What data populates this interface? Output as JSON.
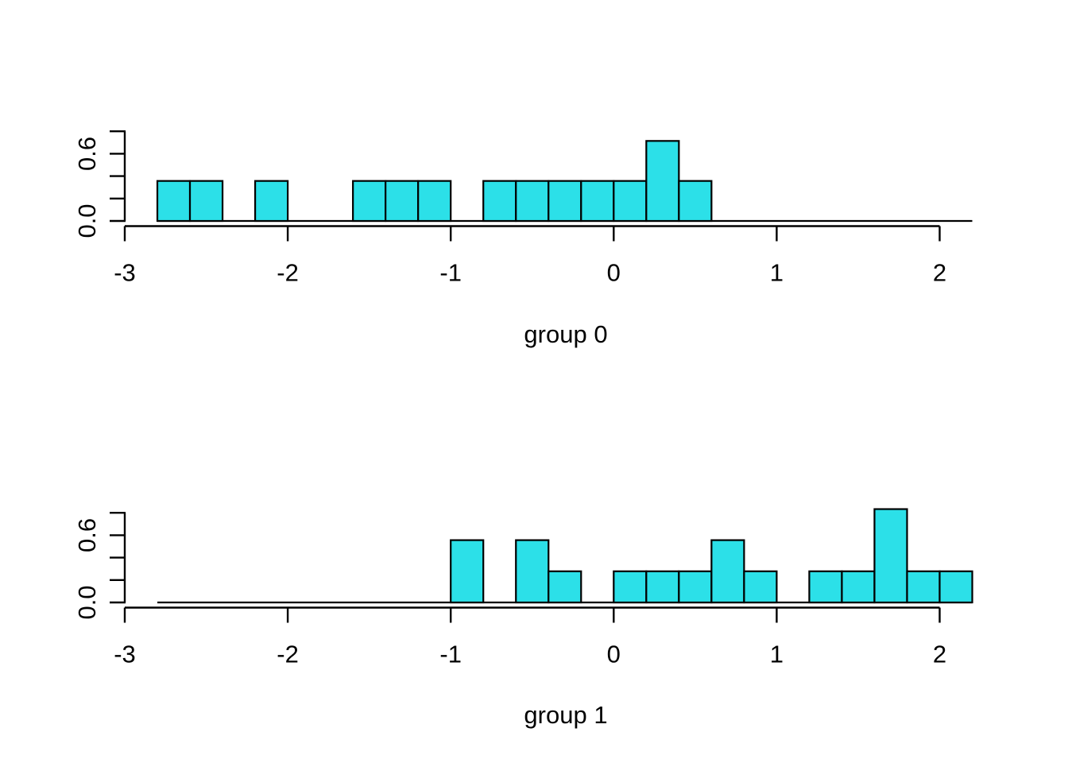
{
  "figure": {
    "background": "#ffffff",
    "text_color": "#000000",
    "bar_fill": "#2CE0E8",
    "bar_stroke": "#000000",
    "axis_color": "#000000"
  },
  "chart_data": [
    {
      "type": "bar",
      "kind": "density-histogram",
      "title": "",
      "xlabel": "group 0",
      "ylabel": "",
      "x_tick_values": [
        -3,
        -2,
        -1,
        0,
        1,
        2
      ],
      "x_tick_labels": [
        "-3",
        "-2",
        "-1",
        "0",
        "1",
        "2"
      ],
      "y_tick_values": [
        0,
        0.2,
        0.4,
        0.6,
        0.8
      ],
      "y_tick_labels": [
        "0.0",
        "",
        "",
        "0.6",
        ""
      ],
      "xlim": [
        -3,
        2.2
      ],
      "ylim": [
        0,
        0.8
      ],
      "grid": false,
      "legend": false,
      "bin_start": -2.8,
      "bin_width": 0.2,
      "n_obs": 14,
      "counts": [
        1,
        1,
        0,
        1,
        0,
        0,
        1,
        1,
        1,
        0,
        1,
        1,
        1,
        1,
        1,
        2,
        1,
        0,
        0,
        0,
        0,
        0,
        0,
        0,
        0
      ],
      "densities": [
        0.357,
        0.357,
        0,
        0.357,
        0,
        0,
        0.357,
        0.357,
        0.357,
        0,
        0.357,
        0.357,
        0.357,
        0.357,
        0.357,
        0.714,
        0.357,
        0,
        0,
        0,
        0,
        0,
        0,
        0,
        0
      ]
    },
    {
      "type": "bar",
      "kind": "density-histogram",
      "title": "",
      "xlabel": "group 1",
      "ylabel": "",
      "x_tick_values": [
        -3,
        -2,
        -1,
        0,
        1,
        2
      ],
      "x_tick_labels": [
        "-3",
        "-2",
        "-1",
        "0",
        "1",
        "2"
      ],
      "y_tick_values": [
        0,
        0.2,
        0.4,
        0.6,
        0.8
      ],
      "y_tick_labels": [
        "0.0",
        "",
        "",
        "0.6",
        ""
      ],
      "xlim": [
        -3,
        2.2
      ],
      "ylim": [
        0,
        0.8
      ],
      "grid": false,
      "legend": false,
      "bin_start": -2.8,
      "bin_width": 0.2,
      "n_obs": 18,
      "counts": [
        0,
        0,
        0,
        0,
        0,
        0,
        0,
        0,
        0,
        2,
        0,
        2,
        1,
        0,
        1,
        1,
        1,
        2,
        1,
        0,
        1,
        1,
        3,
        1,
        1
      ],
      "densities": [
        0,
        0,
        0,
        0,
        0,
        0,
        0,
        0,
        0,
        0.556,
        0,
        0.556,
        0.278,
        0,
        0.278,
        0.278,
        0.278,
        0.556,
        0.278,
        0,
        0.278,
        0.278,
        0.833,
        0.278,
        0.278
      ]
    }
  ]
}
